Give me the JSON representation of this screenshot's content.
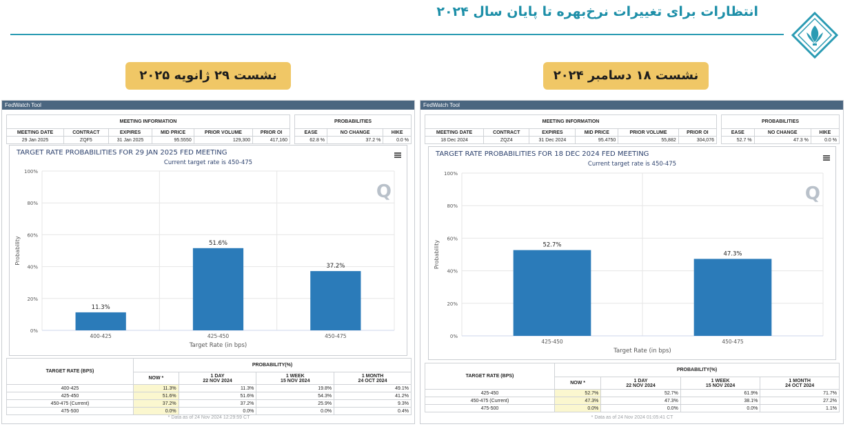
{
  "header": {
    "title": "انتظارات برای تغییرات نرخ‌بهره تا پایان سال ۲۰۲۴",
    "accent_color": "#1d8fa8"
  },
  "badges": {
    "left": "نشست ۲۹ ژانویه ۲۰۲۵",
    "right": "نشست ۱۸ دسامبر ۲۰۲۴"
  },
  "panels": [
    {
      "tool_title": "FedWatch Tool",
      "meeting_info": {
        "title": "MEETING INFORMATION",
        "headers": [
          "MEETING DATE",
          "CONTRACT",
          "EXPIRES",
          "MID PRICE",
          "PRIOR VOLUME",
          "PRIOR OI"
        ],
        "values": [
          "29 Jan 2025",
          "ZQF5",
          "31 Jan 2025",
          "95.5550",
          "129,300",
          "417,160"
        ]
      },
      "probabilities": {
        "title": "PROBABILITIES",
        "headers": [
          "EASE",
          "NO CHANGE",
          "HIKE"
        ],
        "values": [
          "62.8 %",
          "37.2 %",
          "0.0 %"
        ]
      },
      "chart_title": "TARGET RATE PROBABILITIES FOR 29 JAN 2025 FED MEETING",
      "chart_subtitle": "Current target rate is 450-475",
      "table": {
        "target_header": "TARGET RATE (BPS)",
        "prob_header": "PROBABILITY(%)",
        "col_heads": [
          {
            "l1": "NOW *",
            "l2": ""
          },
          {
            "l1": "1 DAY",
            "l2": "22 NOV 2024"
          },
          {
            "l1": "1 WEEK",
            "l2": "15 NOV 2024"
          },
          {
            "l1": "1 MONTH",
            "l2": "24 OCT 2024"
          }
        ],
        "rows": [
          [
            "400-425",
            "11.3%",
            "11.3%",
            "19.8%",
            "49.1%"
          ],
          [
            "425-450",
            "51.6%",
            "51.6%",
            "54.3%",
            "41.2%"
          ],
          [
            "450-475 (Current)",
            "37.2%",
            "37.2%",
            "25.9%",
            "9.3%"
          ],
          [
            "475-500",
            "0.0%",
            "0.0%",
            "0.0%",
            "0.4%"
          ]
        ]
      },
      "footnote": "* Data as of 24 Nov 2024 12:29:59 CT"
    },
    {
      "tool_title": "FedWatch Tool",
      "meeting_info": {
        "title": "MEETING INFORMATION",
        "headers": [
          "MEETING DATE",
          "CONTRACT",
          "EXPIRES",
          "MID PRICE",
          "PRIOR VOLUME",
          "PRIOR OI"
        ],
        "values": [
          "18 Dec 2024",
          "ZQZ4",
          "31 Dec 2024",
          "95.4750",
          "55,882",
          "304,076"
        ]
      },
      "probabilities": {
        "title": "PROBABILITIES",
        "headers": [
          "EASE",
          "NO CHANGE",
          "HIKE"
        ],
        "values": [
          "52.7 %",
          "47.3 %",
          "0.0 %"
        ]
      },
      "chart_title": "TARGET RATE PROBABILITIES FOR 18 DEC 2024 FED MEETING",
      "chart_subtitle": "Current target rate is 450-475",
      "table": {
        "target_header": "TARGET RATE (BPS)",
        "prob_header": "PROBABILITY(%)",
        "col_heads": [
          {
            "l1": "NOW *",
            "l2": ""
          },
          {
            "l1": "1 DAY",
            "l2": "22 NOV 2024"
          },
          {
            "l1": "1 WEEK",
            "l2": "15 NOV 2024"
          },
          {
            "l1": "1 MONTH",
            "l2": "24 OCT 2024"
          }
        ],
        "rows": [
          [
            "425-450",
            "52.7%",
            "52.7%",
            "61.9%",
            "71.7%"
          ],
          [
            "450-475 (Current)",
            "47.3%",
            "47.3%",
            "38.1%",
            "27.2%"
          ],
          [
            "475-500",
            "0.0%",
            "0.0%",
            "0.0%",
            "1.1%"
          ]
        ]
      },
      "footnote": "* Data as of 24 Nov 2024 01:05:41 CT"
    }
  ],
  "chart_data": [
    {
      "type": "bar",
      "title": "TARGET RATE PROBABILITIES FOR 29 JAN 2025 FED MEETING",
      "subtitle": "Current target rate is 450-475",
      "categories": [
        "400-425",
        "425-450",
        "450-475"
      ],
      "values": [
        11.3,
        51.6,
        37.2
      ],
      "data_labels": [
        "11.3%",
        "51.6%",
        "37.2%"
      ],
      "xlabel": "Target Rate (in bps)",
      "ylabel": "Probability",
      "ylim": [
        0,
        100
      ],
      "yticks": [
        "0%",
        "20%",
        "40%",
        "60%",
        "80%",
        "100%"
      ],
      "grid": true,
      "bar_color": "#2b7bb9"
    },
    {
      "type": "bar",
      "title": "TARGET RATE PROBABILITIES FOR 18 DEC 2024 FED MEETING",
      "subtitle": "Current target rate is 450-475",
      "categories": [
        "425-450",
        "450-475"
      ],
      "values": [
        52.7,
        47.3
      ],
      "data_labels": [
        "52.7%",
        "47.3%"
      ],
      "xlabel": "Target Rate (in bps)",
      "ylabel": "Probability",
      "ylim": [
        0,
        100
      ],
      "yticks": [
        "0%",
        "20%",
        "40%",
        "60%",
        "80%",
        "100%"
      ],
      "grid": true,
      "bar_color": "#2b7bb9"
    }
  ]
}
